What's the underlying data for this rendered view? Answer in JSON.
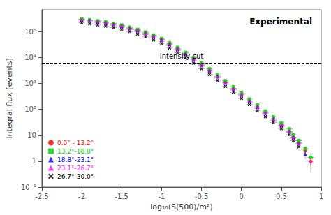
{
  "chart_data": {
    "type": "scatter",
    "title": "Experimental",
    "xlabel": "log₁₀(S(500)/m²)",
    "ylabel": "Integral flux [events]",
    "log": "y",
    "grid": false,
    "legend": "lower left",
    "xlim": [
      -2.5,
      1
    ],
    "xticks": [
      -2.5,
      -2,
      -1.5,
      -1,
      -0.5,
      0,
      0.5,
      1
    ],
    "ylim": [
      0.1,
      700000
    ],
    "yticks": [
      {
        "value": 0.1,
        "label": "10⁻¹"
      },
      1,
      10,
      {
        "value": 100,
        "label": "10²"
      },
      {
        "value": 1000,
        "label": "10³"
      },
      {
        "value": 10000,
        "label": "10⁴"
      },
      {
        "value": 100000,
        "label": "10⁵"
      }
    ],
    "annotations": [
      {
        "type": "hline",
        "y": 6000,
        "text": "Intensity cut",
        "line_style": "dashed",
        "color": "#000000"
      }
    ],
    "series": [
      {
        "name": "0.0° - 13.2°",
        "color": "#ff0000",
        "marker": "circle",
        "x": [
          -2.0,
          -1.9,
          -1.8,
          -1.7,
          -1.6,
          -1.5,
          -1.4,
          -1.3,
          -1.2,
          -1.1,
          -1.0,
          -0.9,
          -0.8,
          -0.7,
          -0.6,
          -0.5,
          -0.4,
          -0.3,
          -0.2,
          -0.1,
          0.0,
          0.1,
          0.2,
          0.3,
          0.4,
          0.5,
          0.6,
          0.65,
          0.72,
          0.8,
          0.87
        ],
        "values": [
          295000,
          270000,
          248000,
          222000,
          196000,
          168000,
          140000,
          114000,
          90000,
          69000,
          50000,
          34000,
          22000,
          14000,
          8800,
          5400,
          3200,
          1900,
          1100,
          640,
          370,
          215,
          125,
          73,
          43,
          25,
          14,
          8.5,
          5.0,
          2.5,
          1.0
        ],
        "yerr": [
          4000,
          3800,
          3500,
          3200,
          2900,
          2600,
          2200,
          1800,
          1500,
          1200,
          900,
          650,
          450,
          310,
          210,
          140,
          92,
          60,
          40,
          26,
          17,
          11,
          7.5,
          5,
          3.5,
          2.5,
          2,
          1.5,
          1.2,
          0.9,
          0.5
        ],
        "xerr": 0.04
      },
      {
        "name": "13.2°-18.8°",
        "color": "#00cc00",
        "marker": "square",
        "x": [
          -2.0,
          -1.9,
          -1.8,
          -1.7,
          -1.6,
          -1.5,
          -1.4,
          -1.3,
          -1.2,
          -1.1,
          -1.0,
          -0.9,
          -0.8,
          -0.7,
          -0.6,
          -0.5,
          -0.4,
          -0.3,
          -0.2,
          -0.1,
          0.0,
          0.1,
          0.2,
          0.3,
          0.4,
          0.5,
          0.6,
          0.65,
          0.72,
          0.8,
          0.87
        ],
        "values": [
          310000,
          285000,
          262000,
          236000,
          208000,
          180000,
          150000,
          122000,
          96000,
          74000,
          54000,
          37000,
          24500,
          15800,
          9900,
          6100,
          3650,
          2150,
          1270,
          740,
          430,
          250,
          147,
          86,
          51,
          30,
          17.5,
          10.5,
          6.2,
          3.0,
          1.4
        ],
        "yerr": [
          4500,
          4000,
          3800,
          3400,
          3000,
          2700,
          2300,
          1900,
          1600,
          1300,
          960,
          700,
          490,
          340,
          230,
          155,
          100,
          65,
          43,
          28,
          18,
          12,
          8,
          5.5,
          4,
          3,
          2,
          1.6,
          1.3,
          0.9,
          0.6
        ],
        "xerr": 0.04
      },
      {
        "name": "18.8°-23.1°",
        "color": "#0000ff",
        "marker": "triangle-up",
        "x": [
          -2.0,
          -1.9,
          -1.8,
          -1.7,
          -1.6,
          -1.5,
          -1.4,
          -1.3,
          -1.2,
          -1.1,
          -1.0,
          -0.9,
          -0.8,
          -0.7,
          -0.6,
          -0.5,
          -0.4,
          -0.3,
          -0.2,
          -0.1,
          0.0,
          0.1,
          0.2,
          0.3,
          0.4,
          0.5,
          0.6,
          0.65,
          0.72,
          0.8
        ],
        "values": [
          285000,
          260000,
          238000,
          213000,
          188000,
          162000,
          134000,
          109000,
          85000,
          65000,
          47000,
          32000,
          21000,
          13500,
          8400,
          5100,
          3050,
          1800,
          1060,
          615,
          358,
          208,
          121,
          71,
          42,
          24,
          14,
          8.3,
          4.9,
          1.9
        ],
        "yerr": [
          4200,
          3800,
          3500,
          3100,
          2800,
          2500,
          2100,
          1800,
          1400,
          1100,
          840,
          600,
          420,
          290,
          195,
          130,
          85,
          56,
          37,
          24,
          16,
          10,
          7,
          5,
          3.5,
          2.5,
          1.8,
          1.4,
          1.1,
          0.7
        ],
        "xerr": 0.04
      },
      {
        "name": "23.1°-26.7°",
        "color": "#ff00ff",
        "marker": "triangle-down",
        "x": [
          -2.0,
          -1.9,
          -1.8,
          -1.7,
          -1.6,
          -1.5,
          -1.4,
          -1.3,
          -1.2,
          -1.1,
          -1.0,
          -0.9,
          -0.8,
          -0.7,
          -0.6,
          -0.5,
          -0.4,
          -0.3,
          -0.2,
          -0.1,
          0.0,
          0.1,
          0.2,
          0.3,
          0.4,
          0.5,
          0.6,
          0.65,
          0.72,
          0.87
        ],
        "values": [
          260000,
          238000,
          218000,
          195000,
          172000,
          148000,
          122000,
          99000,
          77000,
          59000,
          42500,
          29000,
          19000,
          12200,
          7600,
          4650,
          2780,
          1640,
          970,
          565,
          328,
          191,
          111,
          65,
          38,
          22,
          13,
          7.7,
          4.5,
          0.85
        ],
        "yerr": [
          3900,
          3500,
          3200,
          2900,
          2600,
          2300,
          1900,
          1600,
          1300,
          1000,
          760,
          540,
          380,
          265,
          178,
          120,
          78,
          51,
          34,
          22,
          14,
          9.5,
          6.5,
          4.5,
          3.2,
          2.2,
          1.6,
          1.3,
          1.0,
          0.5
        ],
        "xerr": 0.04
      },
      {
        "name": "26.7°-30.0°",
        "color": "#000000",
        "marker": "x",
        "x": [
          -2.0,
          -1.9,
          -1.8,
          -1.7,
          -1.6,
          -1.5,
          -1.4,
          -1.3,
          -1.2,
          -1.1,
          -1.0,
          -0.9,
          -0.8,
          -0.7,
          -0.6,
          -0.5,
          -0.4,
          -0.3,
          -0.2,
          -0.1,
          0.0,
          0.1,
          0.2,
          0.3,
          0.4,
          0.5,
          0.6,
          0.65,
          0.72
        ],
        "values": [
          220000,
          200000,
          182000,
          163000,
          143000,
          122000,
          100000,
          81000,
          63000,
          48000,
          34500,
          23500,
          15400,
          9900,
          6100,
          3720,
          2220,
          1310,
          775,
          452,
          263,
          153,
          89,
          52,
          31,
          18,
          10.5,
          6.2,
          3.6
        ],
        "yerr": [
          3500,
          3200,
          3000,
          2700,
          2400,
          2100,
          1700,
          1400,
          1150,
          900,
          660,
          470,
          330,
          230,
          155,
          104,
          68,
          44,
          30,
          19,
          12,
          8,
          5.5,
          4,
          3,
          2,
          1.5,
          1.2,
          1.0
        ],
        "xerr": 0.04
      }
    ]
  }
}
